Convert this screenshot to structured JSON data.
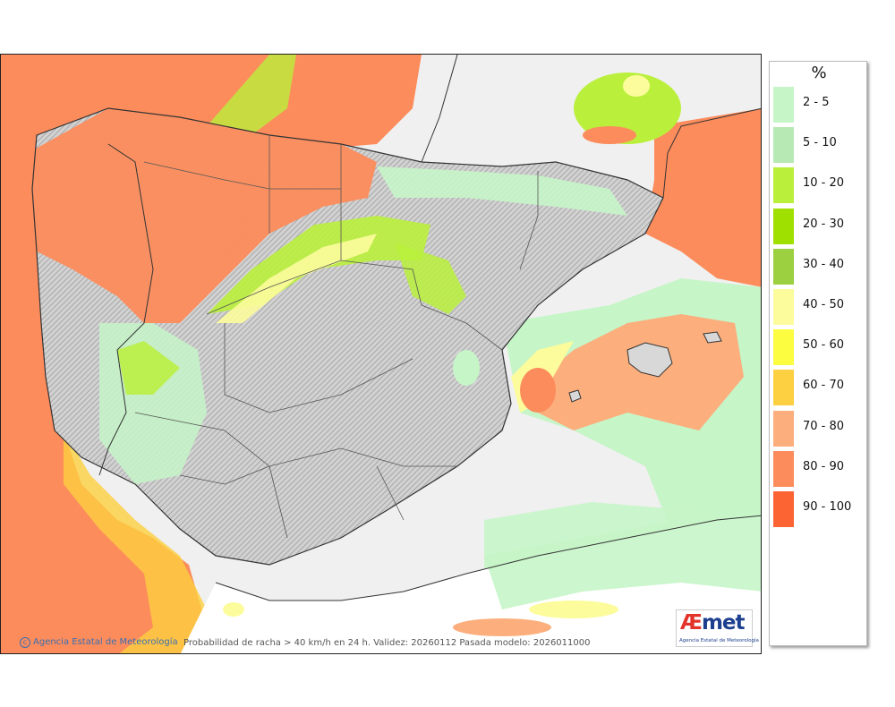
{
  "legend": {
    "title": "%",
    "items": [
      {
        "label": "2 - 5",
        "color": "#c6f5c8"
      },
      {
        "label": "5 - 10",
        "color": "#b7e9b4"
      },
      {
        "label": "10 - 20",
        "color": "#baf03c"
      },
      {
        "label": "20 - 30",
        "color": "#a0e000"
      },
      {
        "label": "30 - 40",
        "color": "#9cd040"
      },
      {
        "label": "40 - 50",
        "color": "#fcfc9c"
      },
      {
        "label": "50 - 60",
        "color": "#fcfc40"
      },
      {
        "label": "60 - 70",
        "color": "#fcd040"
      },
      {
        "label": "70 - 80",
        "color": "#fcae7c"
      },
      {
        "label": "80 - 90",
        "color": "#fc8c5c"
      },
      {
        "label": "90 - 100",
        "color": "#fc6434"
      }
    ]
  },
  "footer": {
    "agency": "Agencia Estatal de Meteorología",
    "caption": "Probabilidad de racha > 40 km/h en 24 h. Validez: 20260112 Pasada modelo: 2026011000"
  },
  "logo": {
    "word_a": "Æ",
    "word_b": "met",
    "subtitle": "Agencia Estatal de Meteorología"
  }
}
